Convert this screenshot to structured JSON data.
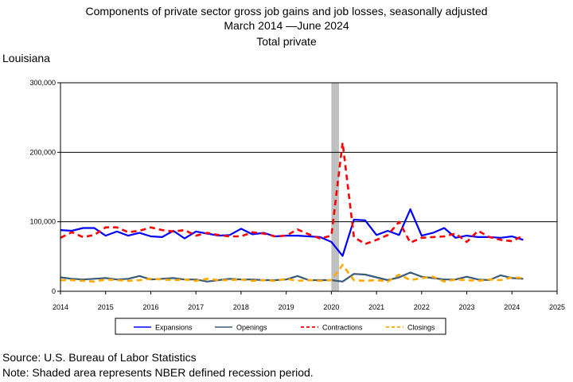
{
  "chart_data": {
    "type": "line",
    "title": "Components of private sector gross job gains and job losses, seasonally adjusted",
    "subtitle": "March 2014 —June 2024",
    "subtitle2": "Total private",
    "region": "Louisiana",
    "y_ticks": [
      "0",
      "100,000",
      "200,000",
      "300,000"
    ],
    "x_ticks": [
      "2014",
      "2015",
      "2016",
      "2017",
      "2018",
      "2019",
      "2020",
      "2021",
      "2022",
      "2023",
      "2024",
      "2025"
    ],
    "xlim": [
      2014,
      2025
    ],
    "ylim": [
      0,
      300000
    ],
    "grid": "horizontal",
    "legend_position": "bottom",
    "recession_band": [
      2020.0,
      2020.17
    ],
    "x": [
      2014.0,
      2014.25,
      2014.5,
      2014.75,
      2015.0,
      2015.25,
      2015.5,
      2015.75,
      2016.0,
      2016.25,
      2016.5,
      2016.75,
      2017.0,
      2017.25,
      2017.5,
      2017.75,
      2018.0,
      2018.25,
      2018.5,
      2018.75,
      2019.0,
      2019.25,
      2019.5,
      2019.75,
      2020.0,
      2020.25,
      2020.5,
      2020.75,
      2021.0,
      2021.25,
      2021.5,
      2021.75,
      2022.0,
      2022.25,
      2022.5,
      2022.75,
      2023.0,
      2023.25,
      2023.5,
      2023.75,
      2024.0,
      2024.25
    ],
    "series": [
      {
        "name": "Expansions",
        "color": "#0000ff",
        "dash": "",
        "width": 2.2,
        "values": [
          88000,
          87000,
          91000,
          91000,
          80000,
          86000,
          80000,
          84000,
          79000,
          78000,
          87000,
          76000,
          86000,
          83000,
          80000,
          81000,
          90000,
          82000,
          84000,
          79000,
          80000,
          80000,
          79000,
          78000,
          71000,
          51000,
          103000,
          102000,
          81000,
          87000,
          81000,
          118000,
          80000,
          84000,
          91000,
          77000,
          80000,
          78000,
          78000,
          77000,
          79000,
          74000
        ]
      },
      {
        "name": "Openings",
        "color": "#3a5a78",
        "dash": "",
        "width": 2.2,
        "values": [
          20000,
          18000,
          17000,
          18000,
          19000,
          17000,
          18000,
          22000,
          17000,
          18000,
          19000,
          17000,
          17000,
          14000,
          16000,
          18000,
          17000,
          17000,
          16000,
          16000,
          17000,
          22000,
          16000,
          16000,
          16000,
          14000,
          25000,
          24000,
          20000,
          16000,
          20000,
          27000,
          21000,
          19000,
          17000,
          17000,
          21000,
          17000,
          16000,
          23000,
          19000,
          18000
        ]
      },
      {
        "name": "Contractions",
        "color": "#ff0000",
        "dash": "7,5",
        "width": 2.6,
        "values": [
          77000,
          85000,
          78000,
          81000,
          92000,
          92000,
          85000,
          87000,
          92000,
          88000,
          86000,
          88000,
          80000,
          84000,
          81000,
          79000,
          79000,
          85000,
          83000,
          79000,
          80000,
          89000,
          82000,
          76000,
          80000,
          214000,
          78000,
          68000,
          74000,
          81000,
          100000,
          70000,
          77000,
          78000,
          79000,
          83000,
          71000,
          87000,
          78000,
          74000,
          72000,
          80000
        ]
      },
      {
        "name": "Closings",
        "color": "#ffaa00",
        "dash": "7,5",
        "width": 2.6,
        "values": [
          16000,
          16000,
          15000,
          14000,
          17000,
          16000,
          15000,
          16000,
          18000,
          17000,
          16000,
          17000,
          15000,
          18000,
          16000,
          16000,
          17000,
          15000,
          16000,
          15000,
          18000,
          15000,
          16000,
          15000,
          16000,
          38000,
          16000,
          15000,
          16000,
          14000,
          24000,
          16000,
          19000,
          21000,
          14000,
          17000,
          16000,
          15000,
          17000,
          16000,
          20000,
          19000
        ]
      }
    ]
  },
  "footer": {
    "source": "Source: U.S. Bureau of Labor Statistics",
    "note": "Note: Shaded area represents NBER defined recession period."
  }
}
